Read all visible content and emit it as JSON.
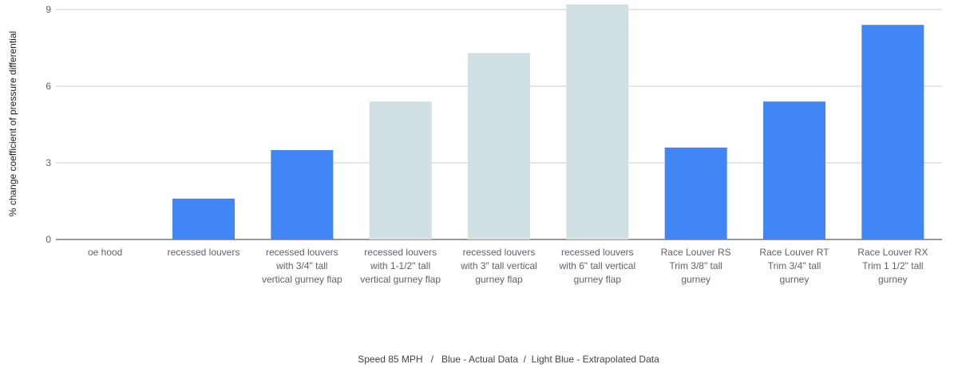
{
  "chart_data": {
    "type": "bar",
    "title": "",
    "ylabel": "% change coefficient of pressure differential",
    "xlabel": "",
    "ylim": [
      0,
      9
    ],
    "yticks": [
      0,
      3,
      6,
      9
    ],
    "grid": true,
    "footnote": "Speed 85 MPH   /   Blue - Actual Data  /  Light Blue - Extrapolated Data",
    "colors": {
      "actual": "#4285f4",
      "extrapolated": "#d0e0e3",
      "grid": "#cccccc",
      "axis": "#333333"
    },
    "categories": [
      [
        "oe hood"
      ],
      [
        "recessed louvers"
      ],
      [
        "recessed louvers",
        "with 3/4\" tall",
        "vertical gurney flap"
      ],
      [
        "recessed louvers",
        "with 1-1/2\" tall",
        "vertical gurney flap"
      ],
      [
        "recessed louvers",
        "with 3\" tall vertical",
        "gurney flap"
      ],
      [
        "recessed louvers",
        "with 6\" tall vertical",
        "gurney flap"
      ],
      [
        "Race Louver RS",
        "Trim 3/8\" tall",
        "gurney"
      ],
      [
        "Race Louver RT",
        "Trim 3/4\" tall",
        "gurney"
      ],
      [
        "Race Louver RX",
        "Trim 1 1/2\" tall",
        "gurney"
      ]
    ],
    "values": [
      0,
      1.6,
      3.5,
      5.4,
      7.3,
      9.2,
      3.6,
      5.4,
      8.4
    ],
    "kinds": [
      "actual",
      "actual",
      "actual",
      "extrapolated",
      "extrapolated",
      "extrapolated",
      "actual",
      "actual",
      "actual"
    ]
  }
}
